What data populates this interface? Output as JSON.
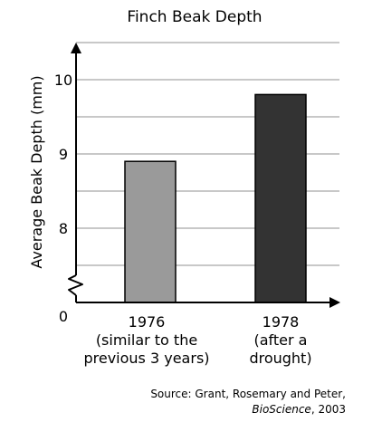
{
  "chart_data": {
    "type": "bar",
    "title": "Finch Beak Depth",
    "ylabel": "Average Beak Depth (mm)",
    "xlabel": "",
    "categories": [
      [
        "1976",
        "(similar to the",
        "previous 3 years)"
      ],
      [
        "1978",
        "(after a",
        "drought)"
      ]
    ],
    "values": [
      8.9,
      9.8
    ],
    "ylim": [
      7,
      10.5
    ],
    "y_ticks": [
      8,
      9,
      10
    ],
    "origin_label": "0",
    "axis_break": true,
    "grid": true,
    "grid_step": 0.5,
    "colors": [
      "#9a9a9a",
      "#333333"
    ],
    "source": {
      "prefix": "Source: Grant, Rosemary and Peter,",
      "journal": "BioScience",
      "suffix": ", 2003"
    }
  }
}
